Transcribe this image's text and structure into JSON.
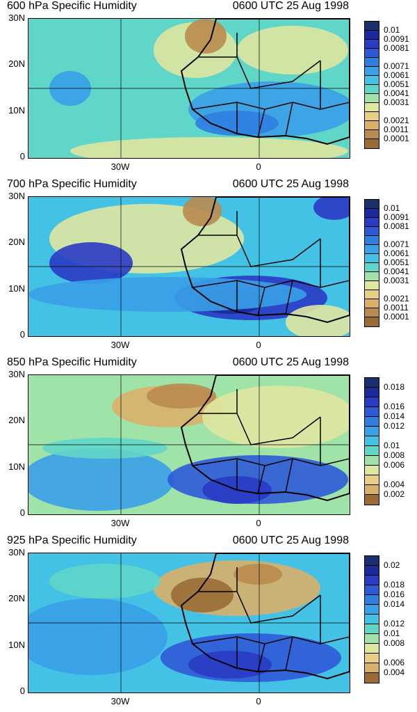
{
  "panels": [
    {
      "title": "600 hPa Specific Humidity",
      "time": "0600 UTC 25 Aug 1998",
      "lat_labels": [
        "30N",
        "20N",
        "10N",
        "0"
      ],
      "lon_labels": [
        "30W",
        "0"
      ],
      "colorbar_labels": [
        "0.01",
        "0.0091",
        "0.0081",
        "0.0071",
        "0.0061",
        "0.0051",
        "0.0041",
        "0.0031",
        "0.0021",
        "0.0011",
        "0.0001"
      ],
      "colorbar_colors": [
        "#1a2f6e",
        "#1c2a9c",
        "#2a3bc4",
        "#2f5ad6",
        "#2f7fe0",
        "#3aa0e8",
        "#44c2e6",
        "#60d6c8",
        "#9fe3a8",
        "#dfe6a0",
        "#e9cf86",
        "#d9b06a",
        "#b98b4e",
        "#9a6b35"
      ]
    },
    {
      "title": "700 hPa Specific Humidity",
      "time": "0600 UTC 25 Aug 1998",
      "lat_labels": [
        "30N",
        "20N",
        "10N",
        "0"
      ],
      "lon_labels": [
        "30W",
        "0"
      ],
      "colorbar_labels": [
        "0.01",
        "0.0091",
        "0.0081",
        "0.0071",
        "0.0061",
        "0.0051",
        "0.0041",
        "0.0031",
        "0.0021",
        "0.0011",
        "0.0001"
      ],
      "colorbar_colors": [
        "#1a2f6e",
        "#1c2a9c",
        "#2a3bc4",
        "#2f5ad6",
        "#2f7fe0",
        "#3aa0e8",
        "#44c2e6",
        "#60d6c8",
        "#9fe3a8",
        "#dfe6a0",
        "#e9cf86",
        "#d9b06a",
        "#b98b4e",
        "#9a6b35"
      ]
    },
    {
      "title": "850 hPa Specific Humidity",
      "time": "0600 UTC 25 Aug 1998",
      "lat_labels": [
        "30N",
        "20N",
        "10N",
        "0"
      ],
      "lon_labels": [
        "30W",
        "0"
      ],
      "colorbar_labels": [
        "0.018",
        "0.016",
        "0.014",
        "0.012",
        "0.01",
        "0.008",
        "0.006",
        "0.004",
        "0.002"
      ],
      "colorbar_colors": [
        "#1a2f6e",
        "#1c2a9c",
        "#2a3bc4",
        "#2f5ad6",
        "#2f7fe0",
        "#3aa0e8",
        "#44c2e6",
        "#60d6c8",
        "#9fe3a8",
        "#dfe6a0",
        "#e9cf86",
        "#d9b06a",
        "#9a6b35"
      ]
    },
    {
      "title": "925 hPa Specific Humidity",
      "time": "0600 UTC 25 Aug 1998",
      "lat_labels": [
        "30N",
        "20N",
        "10N",
        "0"
      ],
      "lon_labels": [
        "30W",
        "0"
      ],
      "colorbar_labels": [
        "0.02",
        "0.018",
        "0.016",
        "0.014",
        "0.012",
        "0.01",
        "0.008",
        "0.006",
        "0.004"
      ],
      "colorbar_colors": [
        "#1a2f6e",
        "#1c2a9c",
        "#2a3bc4",
        "#2f5ad6",
        "#2f7fe0",
        "#3aa0e8",
        "#44c2e6",
        "#60d6c8",
        "#9fe3a8",
        "#dfe6a0",
        "#e9cf86",
        "#d9b06a",
        "#9a6b35"
      ]
    }
  ]
}
